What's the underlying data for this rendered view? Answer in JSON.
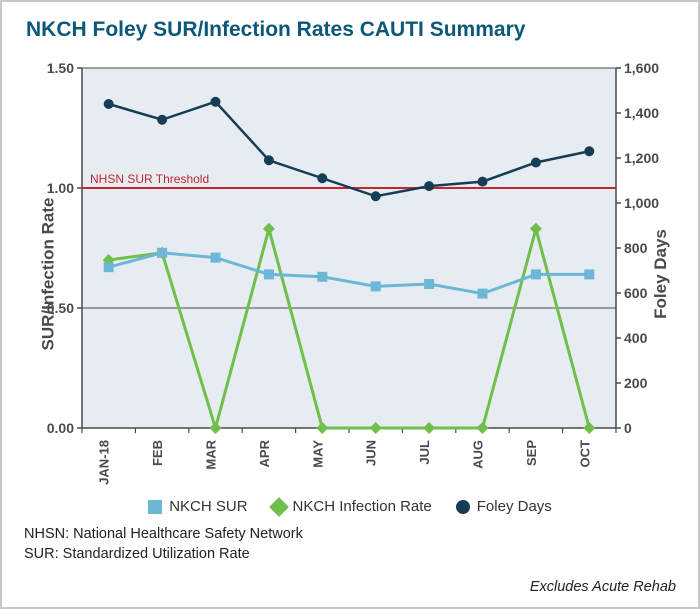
{
  "title": "NKCH Foley SUR/Infection Rates CAUTI Summary",
  "chart": {
    "type": "dual-axis-line",
    "plot_background": "#e7ecf3",
    "axis_color": "#4a4a4a",
    "grid_color": "#4a4a4a",
    "y_left": {
      "label": "SUR/Infection Rate",
      "min": 0.0,
      "max": 1.5,
      "step": 0.5,
      "ticks": [
        "0.00",
        "0.50",
        "1.00",
        "1.50"
      ]
    },
    "y_right": {
      "label": "Foley Days",
      "min": 0,
      "max": 1600,
      "step": 200,
      "ticks": [
        "0",
        "200",
        "400",
        "600",
        "800",
        "1,000",
        "1,200",
        "1,400",
        "1,600"
      ]
    },
    "x_categories": [
      "JAN-18",
      "FEB",
      "MAR",
      "APR",
      "MAY",
      "JUN",
      "JUL",
      "AUG",
      "SEP",
      "OCT"
    ],
    "threshold": {
      "label": "NHSN SUR Threshold",
      "value": 1.0,
      "color": "#c1272d",
      "width": 2
    },
    "series": {
      "sur": {
        "label": "NKCH SUR",
        "color": "#6cb6d6",
        "marker": "square",
        "marker_size": 10,
        "line_width": 3,
        "axis": "left",
        "values": [
          0.67,
          0.73,
          0.71,
          0.64,
          0.63,
          0.59,
          0.6,
          0.56,
          0.64,
          0.64
        ]
      },
      "infection": {
        "label": "NKCH Infection Rate",
        "color": "#6fbf4b",
        "marker": "diamond",
        "marker_size": 12,
        "line_width": 3,
        "axis": "left",
        "values": [
          0.7,
          0.73,
          0.0,
          0.83,
          0.0,
          0.0,
          0.0,
          0.0,
          0.83,
          0.0
        ]
      },
      "foley": {
        "label": "Foley Days",
        "color": "#153e56",
        "marker": "circle",
        "marker_size": 10,
        "line_width": 2.5,
        "axis": "right",
        "values": [
          1440,
          1370,
          1450,
          1190,
          1110,
          1030,
          1075,
          1095,
          1180,
          1230
        ]
      }
    }
  },
  "legend": {
    "sur": "NKCH SUR",
    "infection": "NKCH Infection Rate",
    "foley": "Foley Days"
  },
  "footnotes": {
    "line1": "NHSN: National Healthcare Safety Network",
    "line2": "SUR: Standardized Utilization Rate"
  },
  "excludes": "Excludes Acute Rehab"
}
